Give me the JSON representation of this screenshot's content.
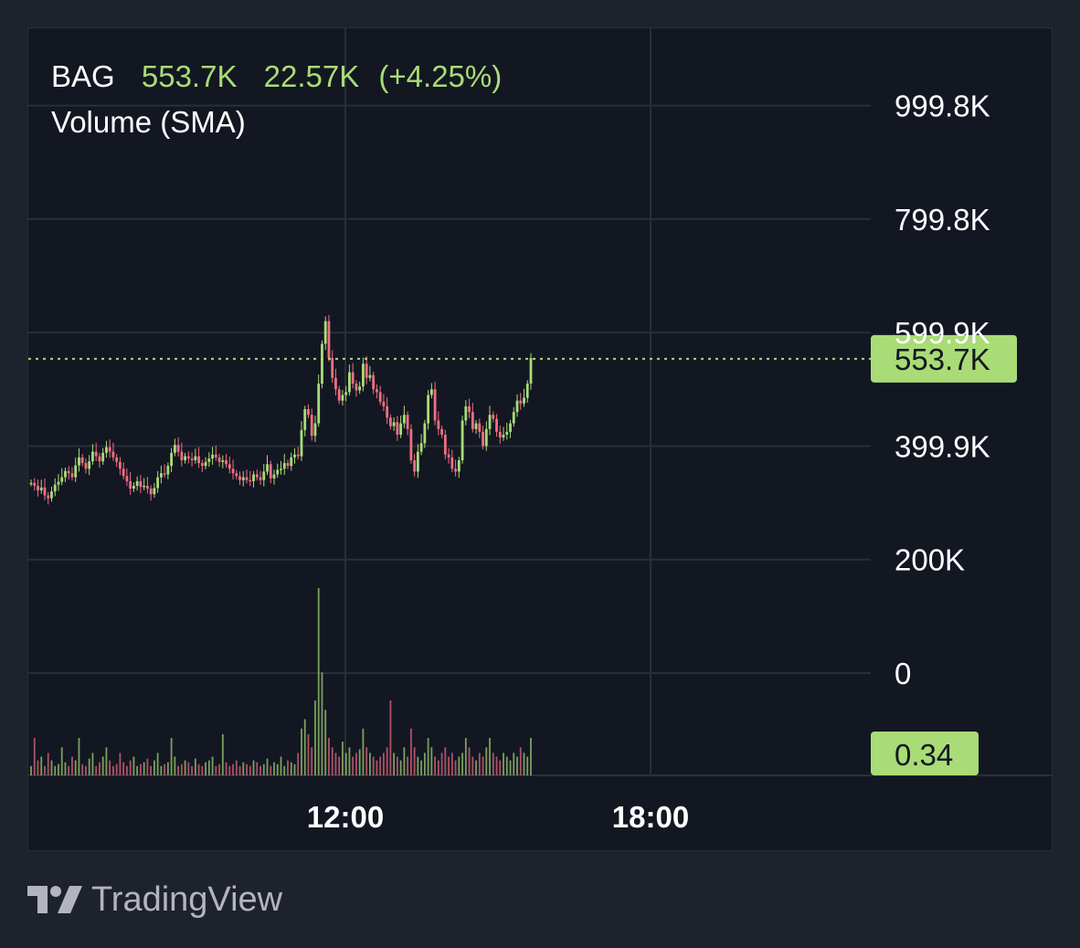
{
  "legend": {
    "symbol": "BAG",
    "last_price": "553.7K",
    "change": "22.57K",
    "change_pct": "(+4.25%)",
    "indicator": "Volume (SMA)"
  },
  "price_badge": "553.7K",
  "volume_badge": "0.34",
  "brand": "TradingView",
  "colors": {
    "background": "#1e222d",
    "pane": "#131722",
    "grid": "#2a2e39",
    "up": "#a9dc76",
    "down": "#f06e84",
    "badge": "#a9dc76"
  },
  "chart_data": {
    "type": "candlestick",
    "price_axis": {
      "ticks": [
        "999.8K",
        "799.8K",
        "599.9K",
        "399.9K",
        "200K",
        "0"
      ],
      "tick_values": [
        999800,
        799800,
        599900,
        399900,
        200000,
        0
      ],
      "ylim": [
        -10000,
        1090000
      ]
    },
    "time_axis": {
      "ticks": [
        "12:00",
        "18:00"
      ]
    },
    "last_price": 553700,
    "series": [
      {
        "name": "price",
        "values": [
          335,
          330,
          322,
          327,
          313,
          308,
          320,
          332,
          337,
          345,
          356,
          352,
          345,
          366,
          380,
          370,
          360,
          373,
          390,
          382,
          373,
          388,
          398,
          390,
          380,
          372,
          360,
          347,
          338,
          325,
          330,
          338,
          328,
          330,
          325,
          315,
          326,
          345,
          352,
          350,
          365,
          388,
          402,
          390,
          375,
          382,
          378,
          375,
          382,
          370,
          365,
          372,
          378,
          385,
          380,
          372,
          375,
          368,
          360,
          352,
          347,
          340,
          345,
          340,
          338,
          350,
          345,
          340,
          355,
          368,
          343,
          350,
          358,
          360,
          370,
          365,
          380,
          385,
          382,
          428,
          465,
          455,
          418,
          440,
          510,
          580,
          620,
          555,
          520,
          500,
          480,
          490,
          495,
          530,
          510,
          498,
          505,
          545,
          520,
          525,
          500,
          495,
          478,
          470,
          450,
          435,
          442,
          420,
          440,
          455,
          430,
          375,
          355,
          390,
          405,
          440,
          490,
          500,
          445,
          430,
          420,
          385,
          380,
          360,
          355,
          375,
          445,
          470,
          460,
          430,
          440,
          425,
          400,
          430,
          455,
          448,
          425,
          415,
          420,
          425,
          440,
          460,
          480,
          475,
          485,
          510,
          555
        ]
      },
      {
        "name": "volume",
        "values": [
          0.05,
          0.2,
          0.08,
          0.1,
          0.05,
          0.12,
          0.08,
          0.05,
          0.06,
          0.15,
          0.07,
          0.05,
          0.1,
          0.08,
          0.2,
          0.06,
          0.05,
          0.09,
          0.12,
          0.05,
          0.07,
          0.1,
          0.15,
          0.08,
          0.05,
          0.06,
          0.12,
          0.07,
          0.05,
          0.08,
          0.1,
          0.05,
          0.06,
          0.07,
          0.09,
          0.05,
          0.08,
          0.12,
          0.05,
          0.06,
          0.07,
          0.2,
          0.1,
          0.05,
          0.06,
          0.08,
          0.07,
          0.05,
          0.09,
          0.06,
          0.05,
          0.07,
          0.08,
          0.1,
          0.05,
          0.06,
          0.22,
          0.07,
          0.05,
          0.06,
          0.08,
          0.05,
          0.07,
          0.06,
          0.05,
          0.08,
          0.07,
          0.05,
          0.06,
          0.09,
          0.05,
          0.07,
          0.06,
          0.1,
          0.05,
          0.08,
          0.07,
          0.06,
          0.12,
          0.25,
          0.3,
          0.22,
          0.15,
          0.4,
          1.0,
          0.55,
          0.35,
          0.2,
          0.15,
          0.12,
          0.1,
          0.18,
          0.12,
          0.15,
          0.1,
          0.12,
          0.14,
          0.25,
          0.15,
          0.12,
          0.1,
          0.08,
          0.1,
          0.12,
          0.15,
          0.4,
          0.12,
          0.1,
          0.08,
          0.15,
          0.1,
          0.25,
          0.15,
          0.1,
          0.08,
          0.12,
          0.2,
          0.15,
          0.1,
          0.08,
          0.12,
          0.15,
          0.1,
          0.12,
          0.08,
          0.1,
          0.12,
          0.2,
          0.15,
          0.1,
          0.08,
          0.12,
          0.1,
          0.15,
          0.2,
          0.12,
          0.1,
          0.08,
          0.12,
          0.1,
          0.08,
          0.12,
          0.1,
          0.15,
          0.12,
          0.1,
          0.2
        ]
      }
    ]
  }
}
